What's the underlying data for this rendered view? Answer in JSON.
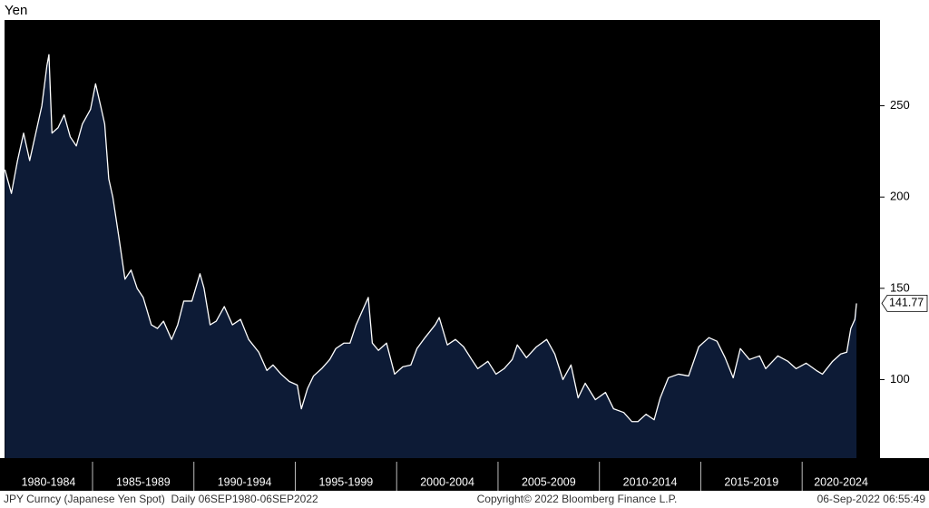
{
  "chart_data": {
    "type": "area",
    "y_axis_label": "Yen",
    "x": [
      1980.68,
      1980.8,
      1981.0,
      1981.3,
      1981.6,
      1981.9,
      1982.3,
      1982.5,
      1982.75,
      1982.85,
      1983.0,
      1983.3,
      1983.6,
      1983.9,
      1984.2,
      1984.5,
      1984.9,
      1985.15,
      1985.4,
      1985.6,
      1985.8,
      1986.0,
      1986.3,
      1986.6,
      1986.9,
      1987.2,
      1987.5,
      1987.9,
      1988.2,
      1988.5,
      1988.9,
      1989.2,
      1989.5,
      1989.9,
      1990.3,
      1990.5,
      1990.8,
      1991.1,
      1991.5,
      1991.9,
      1992.3,
      1992.7,
      1993.2,
      1993.6,
      1993.9,
      1994.3,
      1994.7,
      1995.1,
      1995.3,
      1995.6,
      1995.9,
      1996.3,
      1996.7,
      1997.0,
      1997.4,
      1997.7,
      1998.0,
      1998.6,
      1998.8,
      1999.1,
      1999.5,
      1999.9,
      2000.3,
      2000.7,
      2001.0,
      2001.4,
      2001.9,
      2002.1,
      2002.5,
      2002.9,
      2003.3,
      2003.7,
      2004.0,
      2004.5,
      2004.9,
      2005.3,
      2005.7,
      2005.95,
      2006.4,
      2006.9,
      2007.4,
      2007.8,
      2008.2,
      2008.6,
      2008.95,
      2009.3,
      2009.8,
      2010.3,
      2010.7,
      2011.2,
      2011.6,
      2011.9,
      2012.3,
      2012.7,
      2013.0,
      2013.4,
      2013.9,
      2014.4,
      2014.9,
      2015.4,
      2015.8,
      2016.2,
      2016.6,
      2016.95,
      2017.4,
      2017.9,
      2018.2,
      2018.8,
      2019.3,
      2019.7,
      2020.2,
      2020.7,
      2021.0,
      2021.5,
      2021.9,
      2022.2,
      2022.4,
      2022.6,
      2022.68
    ],
    "values": [
      215,
      210,
      202,
      220,
      235,
      220,
      240,
      250,
      272,
      278,
      235,
      238,
      245,
      233,
      228,
      240,
      248,
      262,
      250,
      240,
      210,
      200,
      178,
      155,
      160,
      150,
      145,
      130,
      128,
      132,
      122,
      130,
      143,
      143,
      158,
      150,
      130,
      132,
      140,
      130,
      133,
      122,
      115,
      105,
      108,
      103,
      99,
      97,
      84,
      95,
      102,
      106,
      111,
      117,
      120,
      120,
      130,
      145,
      120,
      116,
      120,
      103,
      107,
      108,
      117,
      123,
      130,
      134,
      119,
      122,
      118,
      111,
      106,
      110,
      103,
      106,
      111,
      119,
      112,
      118,
      122,
      114,
      100,
      108,
      90,
      98,
      89,
      93,
      84,
      82,
      77,
      77,
      81,
      78,
      90,
      101,
      103,
      102,
      118,
      123,
      121,
      112,
      101,
      117,
      111,
      113,
      106,
      113,
      110,
      106,
      109,
      105,
      103,
      110,
      114,
      115,
      128,
      133,
      141.77
    ],
    "color": "#ffffff",
    "area_color": "#0d1b36",
    "xlim": [
      1980.66,
      2023.84
    ],
    "xticks": [
      1985,
      1990,
      1995,
      2000,
      2005,
      2010,
      2015,
      2020
    ],
    "period_labels": [
      "1980-1984",
      "1985-1989",
      "1990-1994",
      "1995-1999",
      "2000-2004",
      "2005-2009",
      "2010-2014",
      "2015-2019",
      "2020-2024"
    ],
    "ylim": [
      57,
      297
    ],
    "yticks": [
      100,
      150,
      200,
      250
    ],
    "footer_left": "JPY Curncy (Japanese Yen Spot)  Daily 06SEP1980-06SEP2022",
    "footer_center": "Copyright© 2022 Bloomberg Finance L.P.",
    "footer_right": "06-Sep-2022 06:55:49"
  }
}
